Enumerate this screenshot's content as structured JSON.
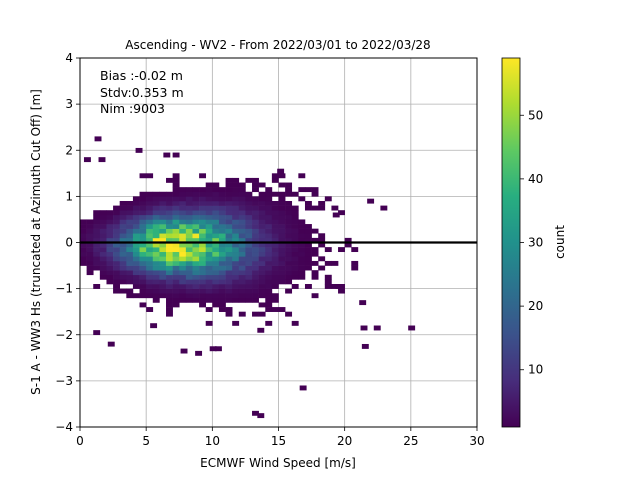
{
  "chart_data": {
    "type": "heatmap",
    "title": "Ascending - WV2 - From 2022/03/01 to 2022/03/28",
    "xlabel": "ECMWF Wind Speed [m/s]",
    "ylabel": "S-1 A - WW3 Hs (truncated at Azimuth Cut Off) [m]",
    "xlim": [
      0,
      30
    ],
    "ylim": [
      -4,
      4
    ],
    "xticks": [
      0,
      5,
      10,
      15,
      20,
      25,
      30
    ],
    "yticks": [
      -4,
      -3,
      -2,
      -1,
      0,
      1,
      2,
      3,
      4
    ],
    "grid": true,
    "reference_line_y": 0,
    "stats": [
      "Bias :-0.02 m",
      "Stdv:0.353 m",
      "Nim :9003"
    ],
    "colorbar": {
      "label": "count",
      "range": [
        1,
        59
      ],
      "ticks": [
        10,
        20,
        30,
        40,
        50
      ],
      "colormap": "viridis"
    },
    "bin_width": [
      0.5,
      0.1
    ],
    "density_core": {
      "center_x": 7.0,
      "center_y": -0.05,
      "peak_count": 59
    },
    "outlier_bins": [
      [
        1.1,
        2.2
      ],
      [
        0.3,
        1.75
      ],
      [
        1.4,
        1.75
      ],
      [
        4.2,
        1.95
      ],
      [
        6.3,
        1.85
      ],
      [
        7.0,
        1.85
      ],
      [
        14.9,
        1.5
      ],
      [
        21.7,
        0.85
      ],
      [
        22.7,
        0.7
      ],
      [
        19.1,
        0.55
      ],
      [
        1.0,
        -2.0
      ],
      [
        2.1,
        -2.25
      ],
      [
        5.3,
        -1.85
      ],
      [
        7.6,
        -2.4
      ],
      [
        8.7,
        -2.45
      ],
      [
        9.8,
        -2.35
      ],
      [
        10.2,
        -2.35
      ],
      [
        13.4,
        -1.95
      ],
      [
        16.6,
        -3.2
      ],
      [
        13.0,
        -3.75
      ],
      [
        13.4,
        -3.8
      ],
      [
        19.3,
        -1.0
      ],
      [
        21.1,
        -1.35
      ],
      [
        21.2,
        -1.9
      ],
      [
        22.2,
        -1.9
      ],
      [
        21.3,
        -2.3
      ],
      [
        24.8,
        -1.9
      ]
    ]
  }
}
